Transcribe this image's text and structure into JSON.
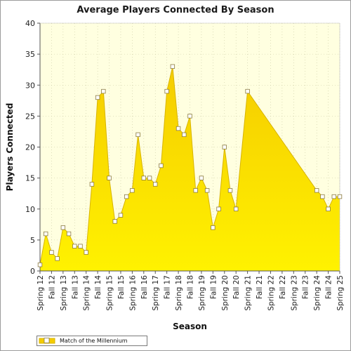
{
  "colors": {
    "plot_background": "#ffffe0",
    "area_fill_top": "#f5cc00",
    "area_fill_bottom": "#fff200",
    "line": "#d8b400",
    "marker_fill": "#ffffff",
    "marker_stroke": "#8a7a40",
    "grid": "#c8c8a0"
  },
  "chart_data": {
    "type": "area",
    "title": "Average Players Connected By Season",
    "xlabel": "Season",
    "ylabel": "Players Connected",
    "ylim": [
      0,
      40
    ],
    "y_ticks": [
      0,
      5,
      10,
      15,
      20,
      25,
      30,
      35,
      40
    ],
    "grid": true,
    "legend_position": "bottom-left",
    "x_tick_labels": [
      "Spring 12",
      "Fall 12",
      "Spring 13",
      "Fall 13",
      "Spring 14",
      "Fall 14",
      "Spring 15",
      "Fall 15",
      "Spring 16",
      "Fall 16",
      "Spring 17",
      "Fall 17",
      "Spring 18",
      "Fall 18",
      "Spring 19",
      "Fall 19",
      "Spring 20",
      "Fall 20",
      "Spring 21",
      "Fall 21",
      "Spring 22",
      "Fall 22",
      "Spring 23",
      "Fall 23",
      "Spring 24",
      "Fall 24",
      "Spring 25"
    ],
    "x_range": [
      0,
      26
    ],
    "series": [
      {
        "name": "Match of the Millennium",
        "points": [
          [
            0,
            1
          ],
          [
            0.5,
            6
          ],
          [
            1,
            3
          ],
          [
            1.5,
            2
          ],
          [
            2,
            7
          ],
          [
            2.5,
            6
          ],
          [
            3,
            4
          ],
          [
            3.5,
            4
          ],
          [
            4,
            3
          ],
          [
            4.5,
            14
          ],
          [
            5,
            28
          ],
          [
            5.5,
            29
          ],
          [
            6,
            15
          ],
          [
            6.5,
            8
          ],
          [
            7,
            9
          ],
          [
            7.5,
            12
          ],
          [
            8,
            13
          ],
          [
            8.5,
            22
          ],
          [
            9,
            15
          ],
          [
            9.5,
            15
          ],
          [
            10,
            14
          ],
          [
            10.5,
            17
          ],
          [
            11,
            29
          ],
          [
            11.5,
            33
          ],
          [
            12,
            23
          ],
          [
            12.5,
            22
          ],
          [
            13,
            25
          ],
          [
            13.5,
            13
          ],
          [
            14,
            15
          ],
          [
            14.5,
            13
          ],
          [
            15,
            7
          ],
          [
            15.5,
            10
          ],
          [
            16,
            20
          ],
          [
            16.5,
            13
          ],
          [
            17,
            10
          ],
          [
            18,
            29
          ],
          [
            24,
            13
          ],
          [
            24.5,
            12
          ],
          [
            25,
            10
          ],
          [
            25.5,
            12
          ],
          [
            26,
            12
          ]
        ]
      }
    ]
  }
}
